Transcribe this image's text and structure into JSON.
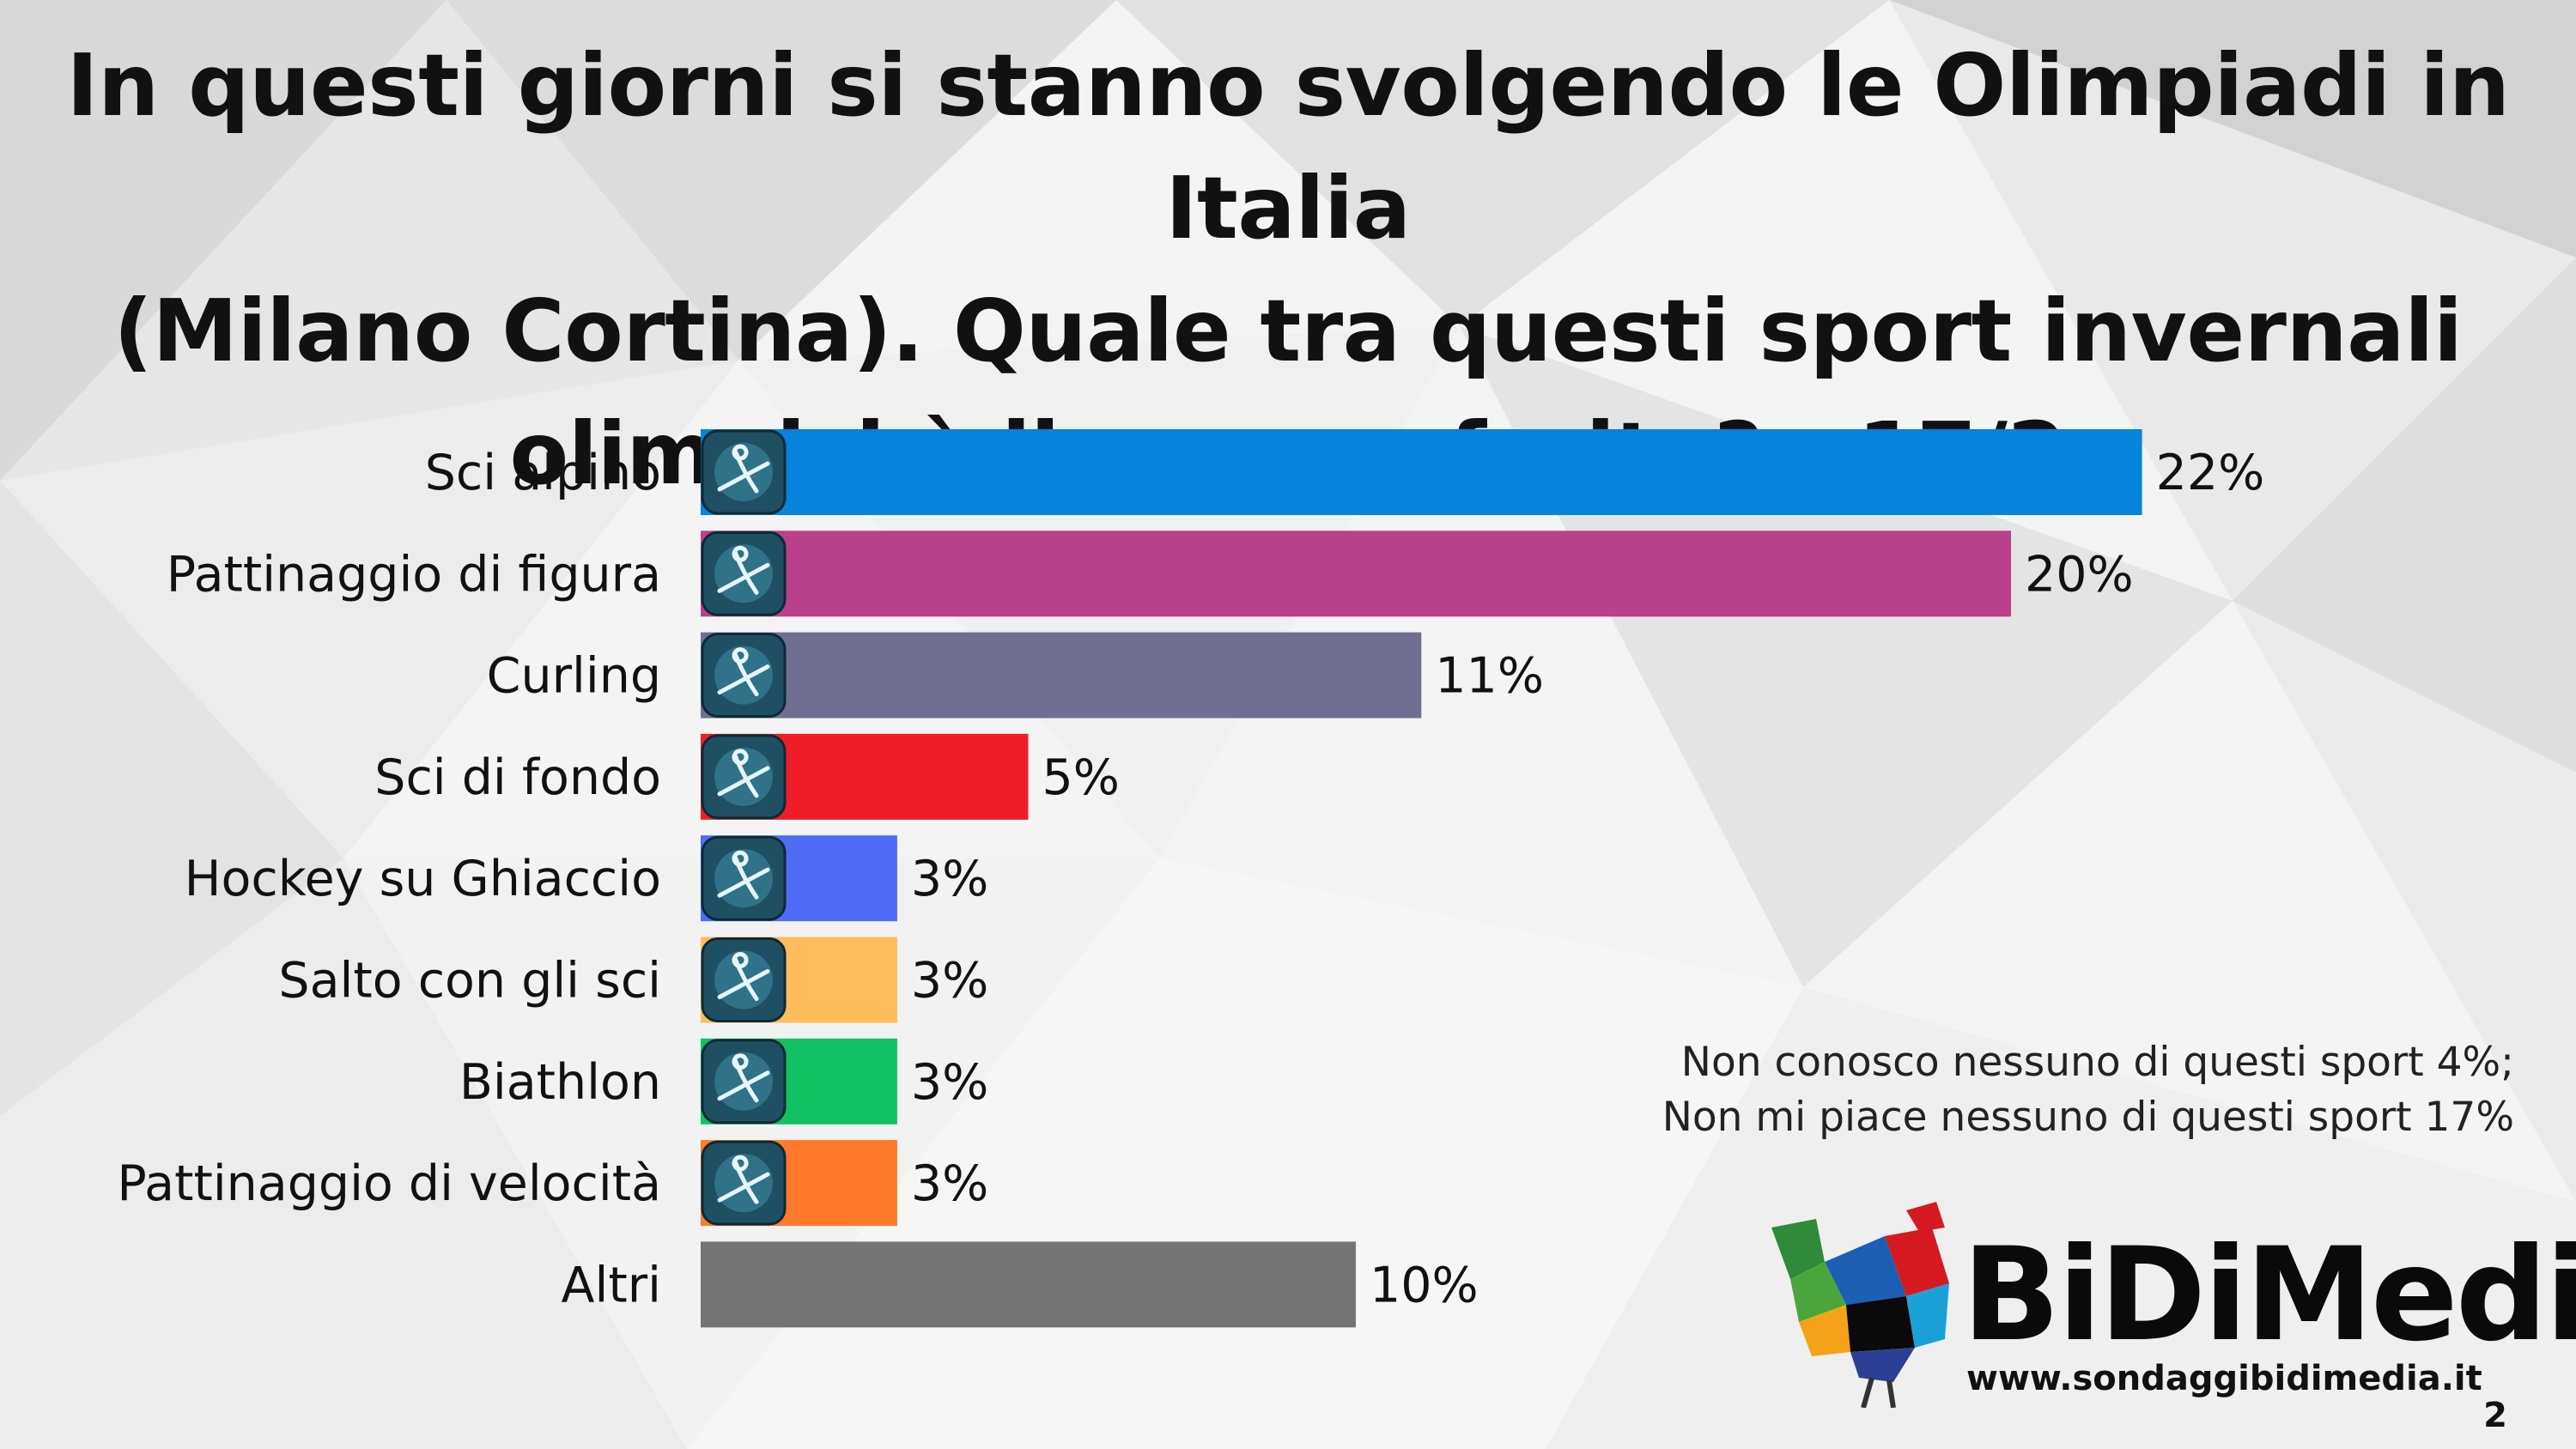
{
  "title_lines": [
    "In questi giorni si stanno svolgendo le Olimpiadi in Italia",
    "(Milano Cortina). Quale tra questi sport invernali",
    "olimpici è il suo preferito? - 17/2"
  ],
  "chart_data": {
    "type": "bar",
    "orientation": "horizontal",
    "categories": [
      "Sci alpino",
      "Pattinaggio di figura",
      "Curling",
      "Sci di fondo",
      "Hockey su Ghiaccio",
      "Salto con gli sci",
      "Biathlon",
      "Pattinaggio di velocità",
      "Altri"
    ],
    "values": [
      22,
      20,
      11,
      5,
      3,
      3,
      3,
      3,
      10
    ],
    "value_labels": [
      "22%",
      "20%",
      "11%",
      "5%",
      "3%",
      "3%",
      "3%",
      "3%",
      "10%"
    ],
    "unit": "%",
    "colors": [
      "#0583dd",
      "#b9408a",
      "#716f91",
      "#ee1d27",
      "#4f6cf6",
      "#ffbd5b",
      "#12c163",
      "#ff7a2a",
      "#747474"
    ],
    "icons": [
      "alpine-skiing-icon",
      "figure-skating-icon",
      "curling-icon",
      "cross-country-skiing-icon",
      "ice-hockey-icon",
      "ski-jumping-icon",
      "biathlon-icon",
      "speed-skating-icon",
      null
    ],
    "grid": false,
    "legend": "none"
  },
  "note_lines": [
    "Non conosco nessuno di questi sport 4%;",
    "Non mi piace nessuno di questi sport 17%"
  ],
  "logo": {
    "brand": "BiDiMedia",
    "url": "www.sondaggibidimedia.it",
    "icon": "rooster-logo-icon"
  },
  "page_number": "2"
}
